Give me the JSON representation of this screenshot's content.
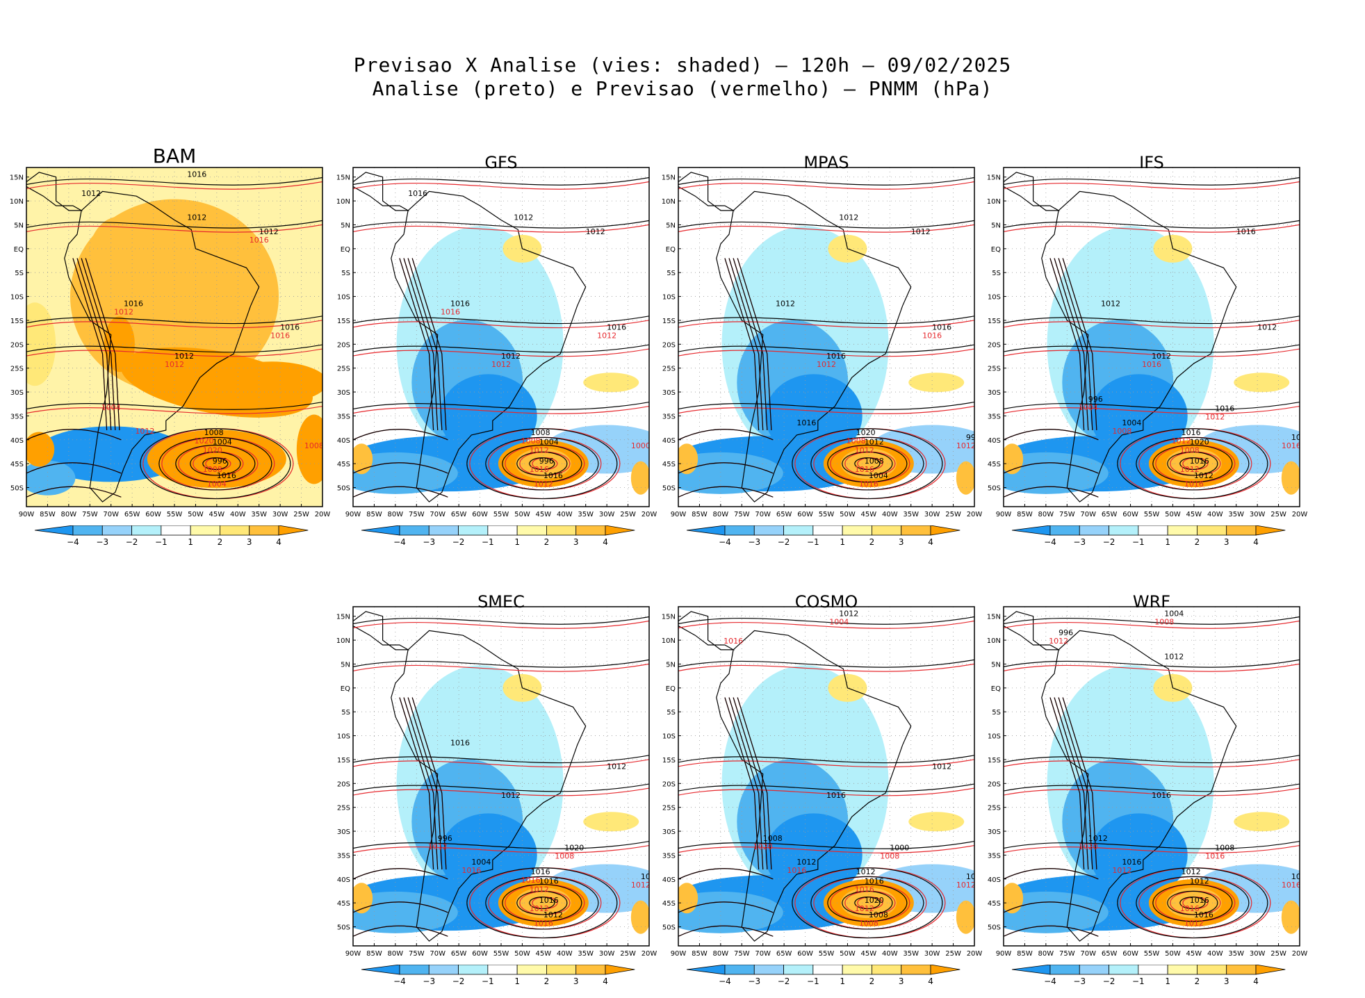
{
  "header": {
    "line1": "Previsao X Analise (vies: shaded) – 120h – 09/02/2025",
    "line2": "Analise (preto) e Previsao (vermelho) – PNMM (hPa)"
  },
  "axes": {
    "lat_labels": [
      "15N",
      "10N",
      "5N",
      "EQ",
      "5S",
      "10S",
      "15S",
      "20S",
      "25S",
      "30S",
      "35S",
      "40S",
      "45S",
      "50S"
    ],
    "lon_labels": [
      "90W",
      "85W",
      "80W",
      "75W",
      "70W",
      "65W",
      "60W",
      "55W",
      "50W",
      "45W",
      "40W",
      "35W",
      "30W",
      "25W",
      "20W"
    ]
  },
  "colorbar": {
    "labels": [
      "-4",
      "-3",
      "-2",
      "-1",
      "1",
      "2",
      "3",
      "4"
    ],
    "colors": [
      "#1e96f0",
      "#50b4f0",
      "#96d2fa",
      "#b4f0fa",
      "#ffffff",
      "#fffaaa",
      "#ffe878",
      "#ffc03c",
      "#ffa000"
    ]
  },
  "contour_colors": {
    "analise": "#000000",
    "previsao": "#e6282d"
  },
  "panels": [
    {
      "name": "BAM",
      "shade": "warm",
      "labels_black": [
        "1016",
        "1012",
        "1012",
        "1012",
        "1016",
        "1016",
        "1012",
        "1008",
        "1004",
        "996",
        "1016"
      ],
      "labels_red": [
        "1016",
        "1012",
        "1016",
        "1012",
        "1020",
        "1020",
        "1008",
        "1004",
        "1008",
        "1012",
        "1004"
      ]
    },
    {
      "name": "GFS",
      "shade": "cool",
      "labels_black": [
        "1016",
        "1012",
        "1012",
        "1016",
        "1016",
        "1012",
        "1008",
        "1004",
        "996",
        "1016"
      ],
      "labels_red": [
        "1016",
        "1012",
        "1012",
        "1008",
        "1012",
        "1016",
        "1012",
        "1000"
      ]
    },
    {
      "name": "MPAS",
      "shade": "cool",
      "labels_black": [
        "1012",
        "1012",
        "1012",
        "1016",
        "1016",
        "1020",
        "1012",
        "1008",
        "1004",
        "996",
        "1016"
      ],
      "labels_red": [
        "1016",
        "1012",
        "1008",
        "1012",
        "1016",
        "1016",
        "1012"
      ]
    },
    {
      "name": "IFS",
      "shade": "cool",
      "labels_black": [
        "1016",
        "1012",
        "1012",
        "1012",
        "1016",
        "1020",
        "1016",
        "1012",
        "1008",
        "1004",
        "996",
        "1016"
      ],
      "labels_red": [
        "1016",
        "1012",
        "1008",
        "1012",
        "1016",
        "1016",
        "1008",
        "1004",
        "1012"
      ]
    },
    {
      "name": "SMEC",
      "shade": "cool",
      "labels_black": [
        "1016",
        "1012",
        "1012",
        "1016",
        "1016",
        "1016",
        "1012",
        "1008",
        "1004",
        "996",
        "1020"
      ],
      "labels_red": [
        "1016",
        "1012",
        "1012",
        "1016",
        "1012",
        "1016",
        "1012",
        "1008"
      ]
    },
    {
      "name": "COSMO",
      "shade": "cool",
      "labels_black": [
        "1012",
        "1016",
        "1012",
        "1016",
        "1020",
        "1008",
        "1016",
        "1012",
        "1008",
        "1000",
        "1012"
      ],
      "labels_red": [
        "1016",
        "1012",
        "1008",
        "1012",
        "1016",
        "1020",
        "1008",
        "1004",
        "1016"
      ]
    },
    {
      "name": "WRF",
      "shade": "cool",
      "labels_black": [
        "1016",
        "1012",
        "1012",
        "1016",
        "1016",
        "1020",
        "1016",
        "1012",
        "1008",
        "1004",
        "996",
        "1012"
      ],
      "labels_red": [
        "1016",
        "1012",
        "1016",
        "1012",
        "1020",
        "1016",
        "1008",
        "1012"
      ]
    }
  ]
}
